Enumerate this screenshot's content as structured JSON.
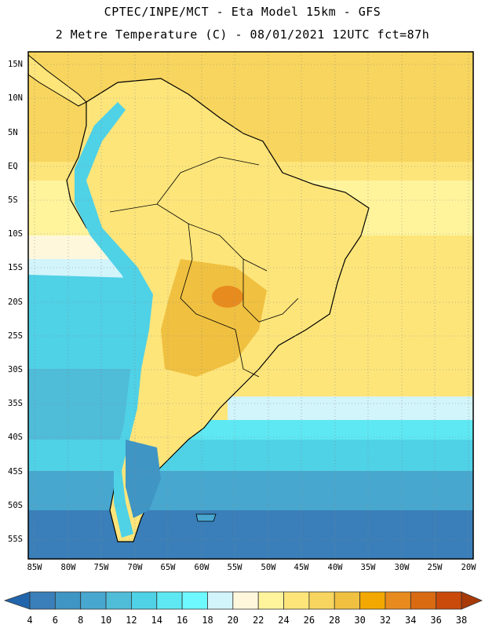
{
  "header": {
    "line1": "CPTEC/INPE/MCT -  Eta Model 15km - GFS",
    "line2": "2 Metre Temperature (C) - 08/01/2021 12UTC fct=87h"
  },
  "map": {
    "lat_labels": [
      "15N",
      "10N",
      "5N",
      "EQ",
      "5S",
      "10S",
      "15S",
      "20S",
      "25S",
      "30S",
      "35S",
      "40S",
      "45S",
      "50S",
      "55S"
    ],
    "lon_labels": [
      "85W",
      "80W",
      "75W",
      "70W",
      "65W",
      "60W",
      "55W",
      "50W",
      "45W",
      "40W",
      "35W",
      "30W",
      "25W",
      "20W"
    ],
    "gridlines": "dotted"
  },
  "colorbar": {
    "labels": [
      "4",
      "6",
      "8",
      "10",
      "12",
      "14",
      "16",
      "18",
      "20",
      "22",
      "24",
      "26",
      "28",
      "30",
      "32",
      "34",
      "36",
      "38"
    ],
    "colors": [
      "#2166ac",
      "#3a7fb9",
      "#3f95c4",
      "#47a7cf",
      "#4fbcd8",
      "#4fd1e6",
      "#5ee8f3",
      "#6ef8ff",
      "#d2f4fb",
      "#fff7dc",
      "#fff49c",
      "#fde57a",
      "#f8d55e",
      "#f0c040",
      "#f2a800",
      "#e88b1e",
      "#d96a12",
      "#c94a0a",
      "#a83a08"
    ]
  }
}
